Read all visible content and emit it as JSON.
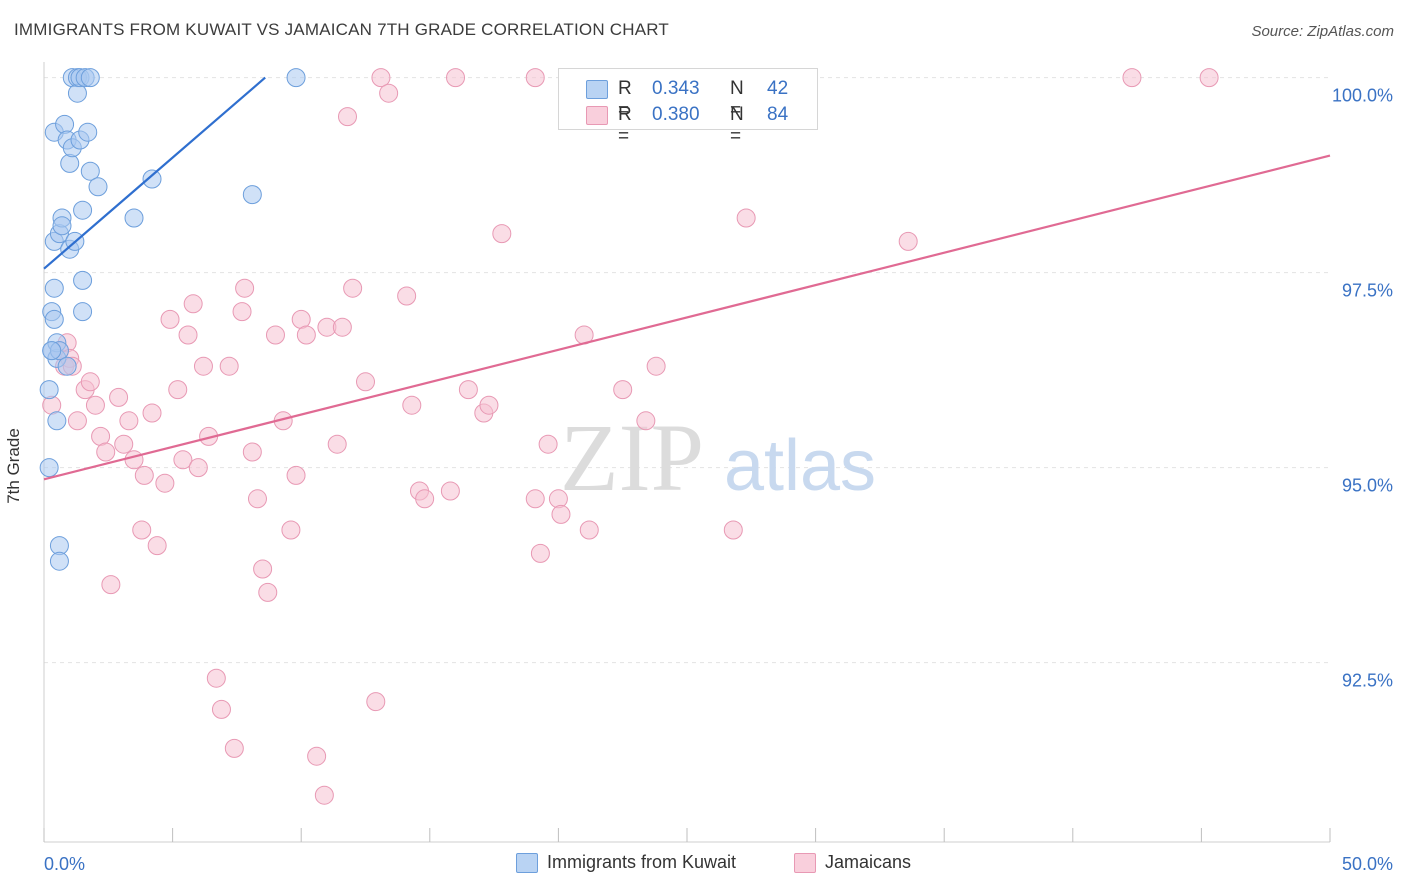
{
  "header": {
    "title": "IMMIGRANTS FROM KUWAIT VS JAMAICAN 7TH GRADE CORRELATION CHART",
    "source": "Source: ZipAtlas.com"
  },
  "watermark": {
    "part1": "ZIP",
    "part2": "atlas"
  },
  "legend": {
    "series": [
      {
        "r_label": "R =",
        "r_value": "0.343",
        "n_label": "N =",
        "n_value": "42"
      },
      {
        "r_label": "R =",
        "r_value": "0.380",
        "n_label": "N =",
        "n_value": "84"
      }
    ]
  },
  "bottom_legend": {
    "items": [
      {
        "label": "Immigrants from Kuwait"
      },
      {
        "label": "Jamaicans"
      }
    ]
  },
  "colors": {
    "kuwait_fill": "#a9c8f0",
    "kuwait_stroke": "#6d9fdc",
    "kuwait_line": "#2f6fcf",
    "jamaica_fill": "#f6c1d2",
    "jamaica_stroke": "#e899b4",
    "jamaica_line": "#e06a93",
    "tick_label": "#3a72c4",
    "grid": "#e3e3e3"
  },
  "chart_data": {
    "type": "scatter",
    "title": "IMMIGRANTS FROM KUWAIT VS JAMAICAN 7TH GRADE CORRELATION CHART",
    "xlabel": "",
    "ylabel": "7th Grade",
    "xlim": [
      0,
      50
    ],
    "ylim": [
      90.2,
      100.2
    ],
    "x_tick_labels": [
      {
        "value": 0,
        "label": "0.0%"
      },
      {
        "value": 50,
        "label": "50.0%"
      }
    ],
    "y_tick_labels": [
      {
        "value": 100,
        "label": "100.0%"
      },
      {
        "value": 97.5,
        "label": "97.5%"
      },
      {
        "value": 95,
        "label": "95.0%"
      },
      {
        "value": 92.5,
        "label": "92.5%"
      }
    ],
    "grid": true,
    "series": [
      {
        "name": "Immigrants from Kuwait",
        "r": 0.343,
        "n": 42,
        "trend": {
          "x": [
            0,
            8.6
          ],
          "y": [
            97.55,
            100.0
          ]
        },
        "points": [
          [
            0.2,
            95.0
          ],
          [
            0.3,
            96.5
          ],
          [
            0.4,
            99.3
          ],
          [
            0.3,
            97.0
          ],
          [
            0.4,
            96.9
          ],
          [
            0.5,
            96.4
          ],
          [
            0.4,
            97.9
          ],
          [
            0.5,
            96.6
          ],
          [
            0.5,
            95.6
          ],
          [
            0.6,
            98.0
          ],
          [
            0.6,
            96.5
          ],
          [
            0.7,
            98.2
          ],
          [
            0.7,
            98.1
          ],
          [
            0.8,
            99.4
          ],
          [
            0.9,
            99.2
          ],
          [
            0.9,
            96.3
          ],
          [
            1.0,
            97.8
          ],
          [
            1.0,
            98.9
          ],
          [
            1.1,
            99.1
          ],
          [
            1.1,
            100.0
          ],
          [
            1.2,
            97.9
          ],
          [
            1.3,
            100.0
          ],
          [
            1.3,
            99.8
          ],
          [
            1.4,
            99.2
          ],
          [
            1.4,
            100.0
          ],
          [
            1.5,
            97.0
          ],
          [
            1.5,
            97.4
          ],
          [
            1.5,
            98.3
          ],
          [
            1.6,
            100.0
          ],
          [
            1.7,
            99.3
          ],
          [
            1.8,
            100.0
          ],
          [
            1.8,
            98.8
          ],
          [
            2.1,
            98.6
          ],
          [
            3.5,
            98.2
          ],
          [
            4.2,
            98.7
          ],
          [
            8.1,
            98.5
          ],
          [
            9.8,
            100.0
          ],
          [
            0.6,
            94.0
          ],
          [
            0.6,
            93.8
          ],
          [
            0.2,
            96.0
          ],
          [
            0.3,
            96.5
          ],
          [
            0.4,
            97.3
          ]
        ]
      },
      {
        "name": "Jamaicans",
        "r": 0.38,
        "n": 84,
        "trend": {
          "x": [
            0,
            50
          ],
          "y": [
            94.85,
            99.0
          ]
        },
        "points": [
          [
            0.3,
            95.8
          ],
          [
            0.6,
            96.5
          ],
          [
            0.8,
            96.3
          ],
          [
            0.9,
            96.6
          ],
          [
            1.0,
            96.4
          ],
          [
            1.1,
            96.3
          ],
          [
            1.3,
            95.6
          ],
          [
            1.6,
            96.0
          ],
          [
            1.8,
            96.1
          ],
          [
            2.0,
            95.8
          ],
          [
            2.2,
            95.4
          ],
          [
            2.4,
            95.2
          ],
          [
            2.6,
            93.5
          ],
          [
            2.9,
            95.9
          ],
          [
            3.1,
            95.3
          ],
          [
            3.3,
            95.6
          ],
          [
            3.5,
            95.1
          ],
          [
            3.8,
            94.2
          ],
          [
            3.9,
            94.9
          ],
          [
            4.2,
            95.7
          ],
          [
            4.4,
            94.0
          ],
          [
            4.7,
            94.8
          ],
          [
            4.9,
            96.9
          ],
          [
            5.2,
            96.0
          ],
          [
            5.4,
            95.1
          ],
          [
            5.6,
            96.7
          ],
          [
            5.8,
            97.1
          ],
          [
            6.0,
            95.0
          ],
          [
            6.2,
            96.3
          ],
          [
            6.4,
            95.4
          ],
          [
            6.7,
            92.3
          ],
          [
            6.9,
            91.9
          ],
          [
            7.2,
            96.3
          ],
          [
            7.4,
            91.4
          ],
          [
            7.7,
            97.0
          ],
          [
            7.8,
            97.3
          ],
          [
            8.1,
            95.2
          ],
          [
            8.3,
            94.6
          ],
          [
            8.5,
            93.7
          ],
          [
            8.7,
            93.4
          ],
          [
            9.0,
            96.7
          ],
          [
            9.3,
            95.6
          ],
          [
            9.6,
            94.2
          ],
          [
            9.8,
            94.9
          ],
          [
            10.0,
            96.9
          ],
          [
            10.2,
            96.7
          ],
          [
            10.6,
            91.3
          ],
          [
            10.9,
            90.8
          ],
          [
            11.0,
            96.8
          ],
          [
            11.4,
            95.3
          ],
          [
            11.6,
            96.8
          ],
          [
            11.8,
            99.5
          ],
          [
            12.0,
            97.3
          ],
          [
            12.5,
            96.1
          ],
          [
            12.9,
            92.0
          ],
          [
            13.1,
            100.0
          ],
          [
            13.4,
            99.8
          ],
          [
            14.1,
            97.2
          ],
          [
            14.3,
            95.8
          ],
          [
            14.6,
            94.7
          ],
          [
            14.8,
            94.6
          ],
          [
            15.8,
            94.7
          ],
          [
            16.0,
            100.0
          ],
          [
            16.5,
            96.0
          ],
          [
            17.1,
            95.7
          ],
          [
            17.3,
            95.8
          ],
          [
            17.8,
            98.0
          ],
          [
            19.1,
            100.0
          ],
          [
            19.1,
            94.6
          ],
          [
            19.3,
            93.9
          ],
          [
            19.6,
            95.3
          ],
          [
            20.0,
            94.6
          ],
          [
            20.1,
            94.4
          ],
          [
            21.0,
            96.7
          ],
          [
            21.2,
            94.2
          ],
          [
            22.5,
            96.0
          ],
          [
            23.4,
            95.6
          ],
          [
            23.8,
            96.3
          ],
          [
            26.8,
            94.2
          ],
          [
            27.0,
            100.0
          ],
          [
            27.3,
            98.2
          ],
          [
            33.6,
            97.9
          ],
          [
            42.3,
            100.0
          ],
          [
            45.3,
            100.0
          ]
        ]
      }
    ]
  }
}
